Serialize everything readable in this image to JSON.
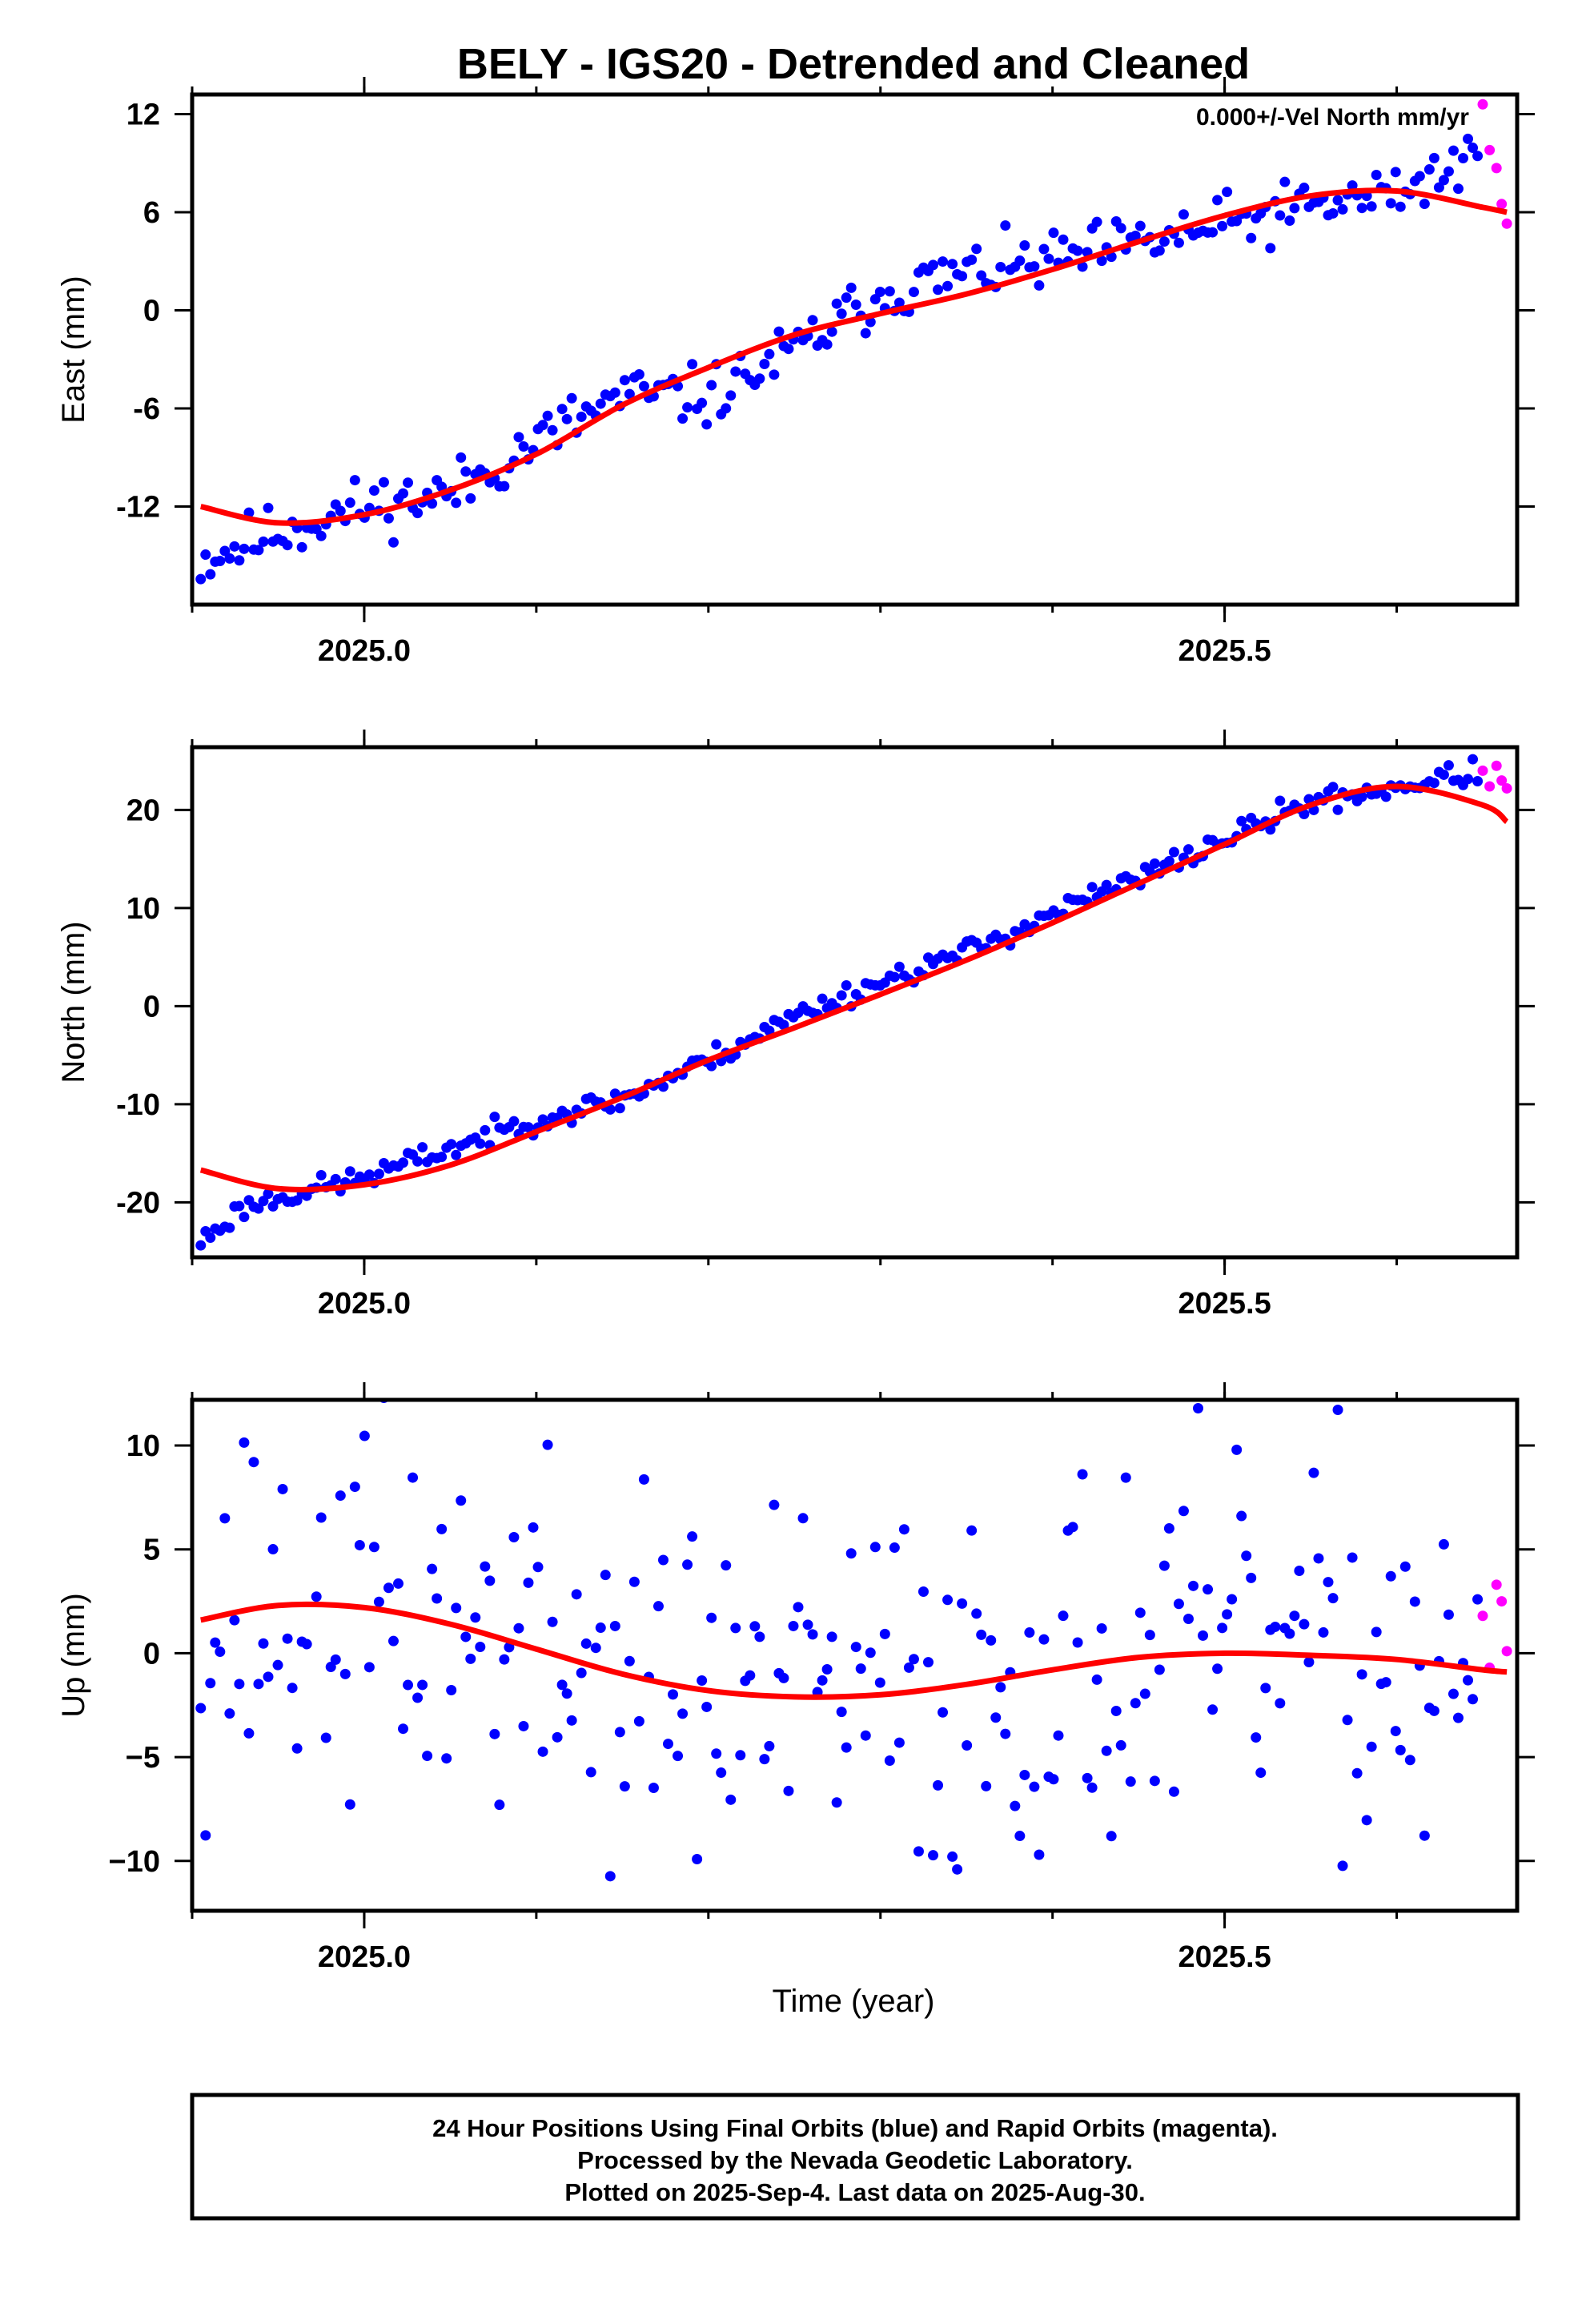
{
  "title": "BELY - IGS20 - Detrended and Cleaned",
  "colors": {
    "final": "#0000ff",
    "rapid": "#ff00ff",
    "model": "#ff0000"
  },
  "xlabel": "Time (year)",
  "footer": [
    "24 Hour Positions Using Final Orbits (blue) and Rapid Orbits (magenta).",
    "Processed by the Nevada Geodetic Laboratory.",
    "Plotted on 2025-Sep-4. Last data on 2025-Aug-30."
  ],
  "chart_data": [
    {
      "type": "scatter",
      "ylabel": "East (mm)",
      "annotation": "0.000+/-Vel North mm/yr",
      "xlim": [
        2024.9,
        2025.67
      ],
      "ylim": [
        -18,
        13.2
      ],
      "xticks": [
        2025.0,
        2025.5
      ],
      "xtick_labels": [
        "2025.0",
        "2025.5"
      ],
      "yticks": [
        -12,
        -6,
        0,
        6,
        12
      ],
      "model": {
        "x": [
          2024.905,
          2024.95,
          2025.0,
          2025.05,
          2025.1,
          2025.15,
          2025.2,
          2025.25,
          2025.3,
          2025.35,
          2025.4,
          2025.45,
          2025.5,
          2025.55,
          2025.6,
          2025.65,
          2025.664
        ],
        "y": [
          -12.0,
          -13.0,
          -12.5,
          -11.0,
          -8.8,
          -5.8,
          -3.5,
          -1.5,
          -0.2,
          1.0,
          2.5,
          4.2,
          5.8,
          7.0,
          7.3,
          6.3,
          6.0
        ]
      },
      "series": [
        {
          "orbit": "final",
          "base_x": [
            2024.905,
            2024.95,
            2025.0,
            2025.05,
            2025.1,
            2025.15,
            2025.2,
            2025.25,
            2025.3,
            2025.35,
            2025.4,
            2025.45,
            2025.5,
            2025.55,
            2025.6,
            2025.65
          ],
          "base_y": [
            -15.3,
            -13.5,
            -12.0,
            -11.2,
            -8.0,
            -5.2,
            -5.3,
            -2.5,
            1.0,
            2.3,
            3.0,
            4.0,
            5.2,
            6.3,
            7.2,
            9.5
          ],
          "x_end": 2025.647,
          "step": 0.0028,
          "noise": 0.9,
          "seed": 11
        },
        {
          "orbit": "rapid",
          "x": [
            2025.65,
            2025.654,
            2025.658,
            2025.661,
            2025.664
          ],
          "y": [
            12.6,
            9.8,
            8.7,
            6.5,
            5.3
          ]
        }
      ]
    },
    {
      "type": "scatter",
      "ylabel": "North (mm)",
      "xlim": [
        2024.9,
        2025.67
      ],
      "ylim": [
        -25.6,
        26.4
      ],
      "xticks": [
        2025.0,
        2025.5
      ],
      "xtick_labels": [
        "2025.0",
        "2025.5"
      ],
      "yticks": [
        -20,
        -10,
        0,
        10,
        20
      ],
      "model": {
        "x": [
          2024.905,
          2024.95,
          2025.0,
          2025.05,
          2025.1,
          2025.15,
          2025.2,
          2025.25,
          2025.3,
          2025.35,
          2025.4,
          2025.45,
          2025.5,
          2025.55,
          2025.6,
          2025.65,
          2025.664
        ],
        "y": [
          -16.7,
          -18.6,
          -18.2,
          -16.2,
          -12.8,
          -9.3,
          -5.5,
          -2.2,
          1.2,
          4.7,
          8.5,
          12.5,
          16.5,
          20.5,
          22.4,
          20.5,
          18.8
        ]
      },
      "series": [
        {
          "orbit": "final",
          "base_x": [
            2024.905,
            2024.93,
            2024.95,
            2025.0,
            2025.05,
            2025.1,
            2025.15,
            2025.2,
            2025.25,
            2025.3,
            2025.35,
            2025.4,
            2025.45,
            2025.5,
            2025.55,
            2025.6,
            2025.65
          ],
          "base_y": [
            -24.0,
            -20.5,
            -19.5,
            -17.5,
            -14.5,
            -11.5,
            -9.5,
            -5.5,
            -1.0,
            2.5,
            5.5,
            9.5,
            13.0,
            17.0,
            20.8,
            22.3,
            24.0
          ],
          "x_end": 2025.647,
          "step": 0.0028,
          "noise": 0.6,
          "seed": 23
        },
        {
          "orbit": "rapid",
          "x": [
            2025.65,
            2025.654,
            2025.658,
            2025.661,
            2025.664
          ],
          "y": [
            24.0,
            22.4,
            24.5,
            23.0,
            22.2
          ]
        }
      ]
    },
    {
      "type": "scatter",
      "ylabel": "Up (mm)",
      "xlim": [
        2024.9,
        2025.67
      ],
      "ylim": [
        -12.4,
        12.2
      ],
      "xticks": [
        2025.0,
        2025.5
      ],
      "xtick_labels": [
        "2025.0",
        "2025.5"
      ],
      "yticks": [
        -10,
        -5,
        0,
        5,
        10
      ],
      "ytick_labels": [
        "−10",
        "−5",
        "0",
        "5",
        "10"
      ],
      "model": {
        "x": [
          2024.905,
          2024.95,
          2025.0,
          2025.05,
          2025.1,
          2025.15,
          2025.2,
          2025.25,
          2025.3,
          2025.35,
          2025.4,
          2025.45,
          2025.5,
          2025.55,
          2025.6,
          2025.65,
          2025.664
        ],
        "y": [
          1.6,
          2.3,
          2.2,
          1.4,
          0.2,
          -1.0,
          -1.8,
          -2.1,
          -2.0,
          -1.5,
          -0.8,
          -0.2,
          0.0,
          -0.1,
          -0.3,
          -0.8,
          -0.9
        ]
      },
      "series": [
        {
          "orbit": "final",
          "base_x": [
            2024.905,
            2024.95,
            2025.0,
            2025.05,
            2025.1,
            2025.15,
            2025.2,
            2025.25,
            2025.3,
            2025.35,
            2025.4,
            2025.45,
            2025.5,
            2025.55,
            2025.6,
            2025.65
          ],
          "base_y": [
            1.6,
            2.3,
            2.2,
            1.4,
            0.2,
            -1.0,
            -1.8,
            -2.1,
            -2.0,
            -1.5,
            -0.8,
            -0.2,
            0.0,
            -0.1,
            -0.3,
            -0.8
          ],
          "x_end": 2025.647,
          "step": 0.0028,
          "noise": 4.6,
          "seed": 37
        },
        {
          "orbit": "rapid",
          "x": [
            2025.65,
            2025.654,
            2025.658,
            2025.661,
            2025.664
          ],
          "y": [
            1.8,
            -0.7,
            3.3,
            2.5,
            0.1
          ]
        }
      ]
    }
  ]
}
